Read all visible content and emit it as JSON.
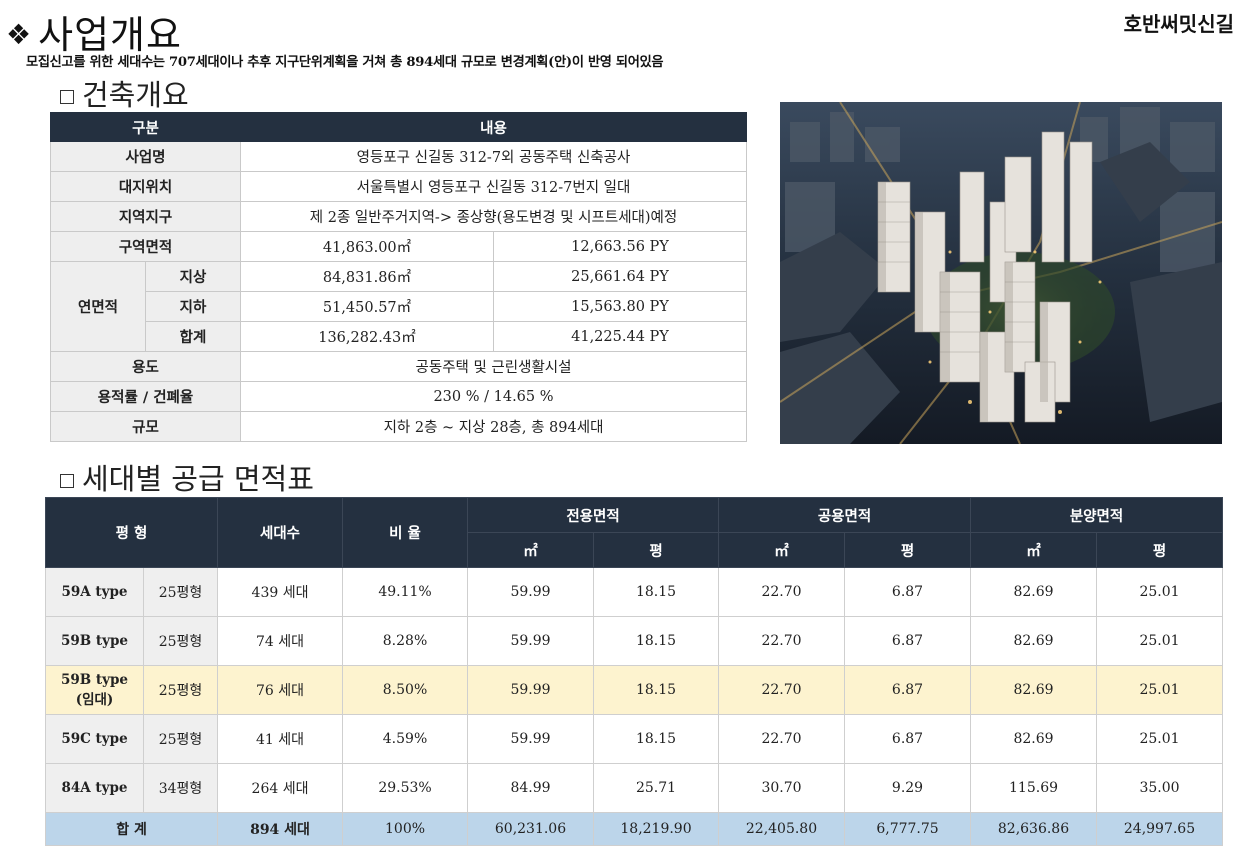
{
  "header": {
    "title": "사업개요",
    "bullet": "❖",
    "brand": "호반써밋신길",
    "notice": "모집신고를 위한 세대수는 707세대이나 추후 지구단위계획을 거쳐 총 894세대 규모로 변경계획(안)이 반영 되어있음"
  },
  "overview": {
    "section_title": "건축개요",
    "col_headers": [
      "구분",
      "내용"
    ],
    "project_name": {
      "label": "사업명",
      "value": "영등포구 신길동 312-7외 공동주택 신축공사"
    },
    "location": {
      "label": "대지위치",
      "value": "서울특별시 영등포구 신길동 312-7번지 일대"
    },
    "zone": {
      "label": "지역지구",
      "value": "제 2종 일반주거지역-> 종상향(용도변경 및 시프트세대)예정"
    },
    "site_area": {
      "label": "구역면적",
      "sqm": "41,863.00㎡",
      "py": "12,663.56 PY"
    },
    "floor_area": {
      "label": "연면적",
      "above": {
        "label": "지상",
        "sqm": "84,831.86㎡",
        "py": "25,661.64 PY"
      },
      "below": {
        "label": "지하",
        "sqm": "51,450.57㎡",
        "py": "15,563.80 PY"
      },
      "total": {
        "label": "합계",
        "sqm": "136,282.43㎡",
        "py": "41,225.44 PY"
      }
    },
    "use": {
      "label": "용도",
      "value": "공동주택 및 근린생활시설"
    },
    "ratio": {
      "label": "용적률 / 건폐율",
      "value": "230 % / 14.65 %"
    },
    "scale": {
      "label": "규모",
      "value": "지하 2층 ~ 지상 28층, 총 894세대"
    }
  },
  "supply": {
    "section_title": "세대별 공급 면적표",
    "headers": {
      "type": "평 형",
      "units": "세대수",
      "ratio": "비 율",
      "exclusive": "전용면적",
      "common": "공용면적",
      "sale": "분양면적",
      "sqm": "㎡",
      "py": "평"
    },
    "rows": [
      {
        "type": "59A type",
        "pyeong": "25평형",
        "units": "439 세대",
        "ratio": "49.11%",
        "ex_sqm": "59.99",
        "ex_py": "18.15",
        "co_sqm": "22.70",
        "co_py": "6.87",
        "sa_sqm": "82.69",
        "sa_py": "25.01"
      },
      {
        "type": "59B type",
        "pyeong": "25평형",
        "units": "74 세대",
        "ratio": "8.28%",
        "ex_sqm": "59.99",
        "ex_py": "18.15",
        "co_sqm": "22.70",
        "co_py": "6.87",
        "sa_sqm": "82.69",
        "sa_py": "25.01"
      },
      {
        "type": "59B type",
        "type2": "(임대)",
        "pyeong": "25평형",
        "units": "76 세대",
        "ratio": "8.50%",
        "ex_sqm": "59.99",
        "ex_py": "18.15",
        "co_sqm": "22.70",
        "co_py": "6.87",
        "sa_sqm": "82.69",
        "sa_py": "25.01"
      },
      {
        "type": "59C type",
        "pyeong": "25평형",
        "units": "41 세대",
        "ratio": "4.59%",
        "ex_sqm": "59.99",
        "ex_py": "18.15",
        "co_sqm": "22.70",
        "co_py": "6.87",
        "sa_sqm": "82.69",
        "sa_py": "25.01"
      },
      {
        "type": "84A type",
        "pyeong": "34평형",
        "units": "264 세대",
        "ratio": "29.53%",
        "ex_sqm": "84.99",
        "ex_py": "25.71",
        "co_sqm": "30.70",
        "co_py": "9.29",
        "sa_sqm": "115.69",
        "sa_py": "35.00"
      }
    ],
    "total": {
      "label": "합 계",
      "units": "894 세대",
      "ratio": "100%",
      "ex_sqm": "60,231.06",
      "ex_py": "18,219.90",
      "co_sqm": "22,405.80",
      "co_py": "6,777.75",
      "sa_sqm": "82,636.86",
      "sa_py": "24,997.65"
    }
  },
  "colors": {
    "header_bg": "#243040",
    "label_bg": "#eeeeee",
    "highlight_row": "#fdf3cf",
    "total_row": "#bcd5ea"
  }
}
